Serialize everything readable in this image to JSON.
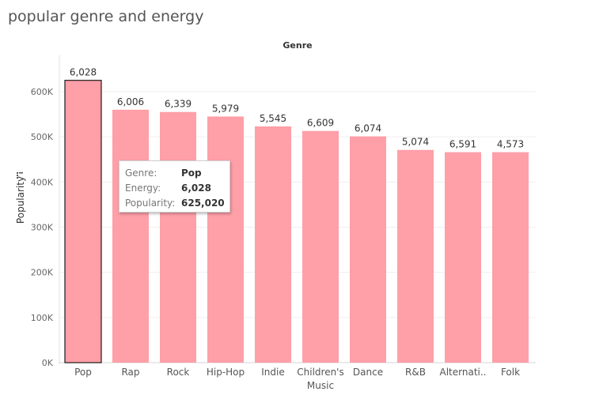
{
  "title": "popular genre and energy",
  "chart_data": {
    "type": "bar",
    "column_header": "Genre",
    "xlabel": "",
    "ylabel": "Popularity",
    "categories": [
      "Pop",
      "Rap",
      "Rock",
      "Hip-Hop",
      "Indie",
      "Children's Music",
      "Dance",
      "R&B",
      "Alternati..",
      "Folk"
    ],
    "series": [
      {
        "values": [
          625020,
          560000,
          555000,
          545000,
          523000,
          513000,
          501000,
          471000,
          466000,
          466000
        ]
      }
    ],
    "data_labels": [
      "6,028",
      "6,006",
      "6,339",
      "5,979",
      "5,545",
      "6,609",
      "6,074",
      "5,074",
      "6,591",
      "4,573"
    ],
    "ylim": [
      0,
      650000
    ],
    "yticks": [
      0,
      100000,
      200000,
      300000,
      400000,
      500000,
      600000
    ],
    "ytick_labels": [
      "0K",
      "100K",
      "200K",
      "300K",
      "400K",
      "500K",
      "600K"
    ],
    "grid": true,
    "bar_color": "#ff9fa8",
    "highlight_index": 0
  },
  "tooltip": {
    "rows": [
      {
        "key": "Genre:",
        "value": "Pop"
      },
      {
        "key": "Energy:",
        "value": "6,028"
      },
      {
        "key": "Popularity:",
        "value": "625,020"
      }
    ]
  }
}
